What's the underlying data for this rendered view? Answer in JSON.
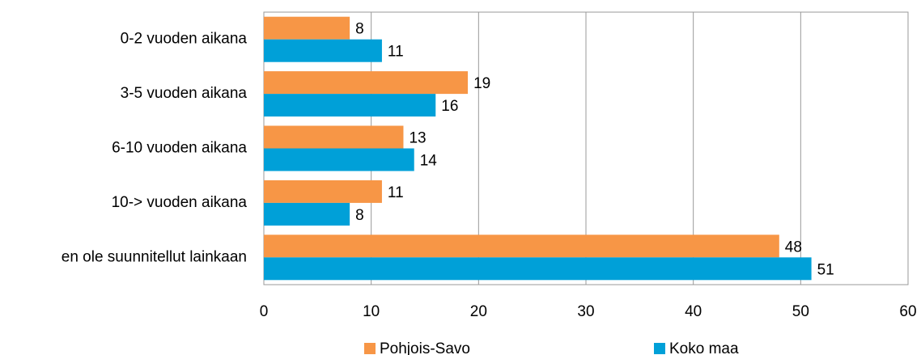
{
  "chart_data": {
    "type": "bar",
    "orientation": "horizontal",
    "categories": [
      "0-2 vuoden aikana",
      "3-5 vuoden aikana",
      "6-10 vuoden aikana",
      "10-> vuoden aikana",
      "en ole suunnitellut lainkaan"
    ],
    "series": [
      {
        "name": "Pohjois-Savo",
        "color": "#f79646",
        "values": [
          8,
          19,
          13,
          11,
          48
        ]
      },
      {
        "name": "Koko maa",
        "color": "#00a0d8",
        "values": [
          11,
          16,
          14,
          8,
          51
        ]
      }
    ],
    "xlim": [
      0,
      60
    ],
    "xticks": [
      0,
      10,
      20,
      30,
      40,
      50,
      60
    ],
    "grid": true,
    "legend": "bottom"
  }
}
